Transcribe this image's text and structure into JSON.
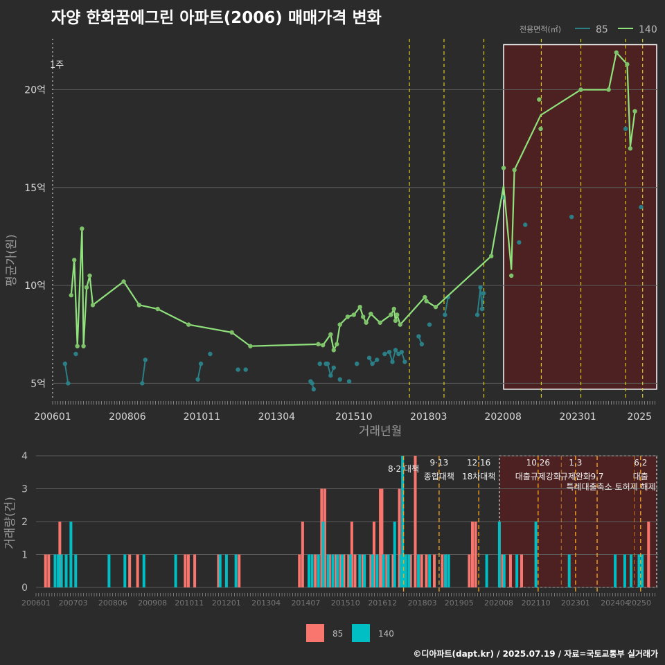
{
  "title": "자양 한화꿈에그린 아파트(2006) 매매가격 변화",
  "credit": "©디아파트(dapt.kr) / 2025.07.19 / 자료=국토교통부 실거래가",
  "colors": {
    "bg": "#2b2b2b",
    "grid": "#5a5a5a",
    "line140": "#90e27c",
    "dot140": "#7ec26a",
    "dot85": "#2b7f86",
    "bar85": "#f8766d",
    "bar140": "#00bfc4",
    "vline": "#d9cb1f",
    "vline_low": "#f0a020",
    "region": "#5a1f1f",
    "text": "#d8d8d8"
  },
  "chart_data": [
    {
      "type": "scatter+line",
      "title": "",
      "xlabel": "거래년월",
      "ylabel": "평균가(원)",
      "x_unit": "year-decimal",
      "xlim": [
        2006.0,
        2025.6
      ],
      "ylim": [
        4.2,
        22.6
      ],
      "x_ticks": [
        {
          "value": 2006.0,
          "label": "200601"
        },
        {
          "value": 2008.42,
          "label": "200806"
        },
        {
          "value": 2010.83,
          "label": "201011"
        },
        {
          "value": 2013.25,
          "label": "201304"
        },
        {
          "value": 2015.75,
          "label": "201510"
        },
        {
          "value": 2018.17,
          "label": "201803"
        },
        {
          "value": 2020.58,
          "label": "202008"
        },
        {
          "value": 2023.0,
          "label": "202301"
        },
        {
          "value": 2025.0,
          "label": "2025"
        }
      ],
      "y_ticks": [
        {
          "value": 5,
          "label": "5억"
        },
        {
          "value": 10,
          "label": "10억"
        },
        {
          "value": 15,
          "label": "15억"
        },
        {
          "value": 20,
          "label": "20억"
        }
      ],
      "legend": {
        "title": "전용면적(㎡)",
        "position": "top-right",
        "items": [
          "85",
          "140"
        ]
      },
      "annotation_text": "1주",
      "vlines": [
        2006.0,
        2017.55,
        2018.67,
        2019.96,
        2021.82,
        2023.1,
        2024.55,
        2025.1
      ],
      "highlight_range": {
        "x": [
          2020.6,
          2025.7
        ],
        "y": [
          4.7,
          22.3
        ]
      },
      "series": [
        {
          "name": "140",
          "points": [
            [
              2006.6,
              9.5
            ],
            [
              2006.7,
              11.3
            ],
            [
              2006.8,
              6.9
            ],
            [
              2006.95,
              12.9
            ],
            [
              2007.0,
              6.9
            ],
            [
              2007.1,
              9.9
            ],
            [
              2007.2,
              10.5
            ],
            [
              2007.3,
              9.0
            ],
            [
              2008.3,
              10.2
            ],
            [
              2008.8,
              9.0
            ],
            [
              2009.4,
              8.8
            ],
            [
              2010.4,
              8.0
            ],
            [
              2011.8,
              7.6
            ],
            [
              2012.4,
              6.9
            ],
            [
              2014.6,
              7.0
            ],
            [
              2014.75,
              6.95
            ],
            [
              2015.0,
              7.5
            ],
            [
              2015.1,
              6.7
            ],
            [
              2015.2,
              7.0
            ],
            [
              2015.3,
              8.0
            ],
            [
              2015.55,
              8.4
            ],
            [
              2015.75,
              8.5
            ],
            [
              2015.95,
              8.9
            ],
            [
              2016.05,
              8.4
            ],
            [
              2016.15,
              8.1
            ],
            [
              2016.3,
              8.55
            ],
            [
              2016.6,
              8.1
            ],
            [
              2016.95,
              8.5
            ],
            [
              2017.05,
              8.8
            ],
            [
              2017.1,
              8.2
            ],
            [
              2017.15,
              8.5
            ],
            [
              2017.25,
              8.0
            ],
            [
              2018.05,
              9.4
            ],
            [
              2018.1,
              9.2
            ],
            [
              2018.4,
              8.9
            ],
            [
              2020.2,
              11.5
            ],
            [
              2020.6,
              16.0
            ],
            [
              2020.85,
              10.5
            ],
            [
              2020.95,
              15.9
            ],
            [
              2021.75,
              19.5
            ],
            [
              2021.8,
              18.0
            ],
            [
              2023.1,
              20.0
            ],
            [
              2024.0,
              20.0
            ],
            [
              2024.25,
              21.9
            ],
            [
              2024.6,
              21.3
            ],
            [
              2024.7,
              17.0
            ],
            [
              2024.85,
              18.9
            ]
          ],
          "line": [
            [
              2020.2,
              11.5
            ],
            [
              2020.6,
              15.1
            ],
            [
              2020.85,
              10.8
            ],
            [
              2020.95,
              15.9
            ],
            [
              2021.8,
              18.7
            ],
            [
              2023.1,
              20.0
            ],
            [
              2024.0,
              20.0
            ],
            [
              2024.25,
              21.9
            ],
            [
              2024.6,
              21.3
            ],
            [
              2024.7,
              17.1
            ],
            [
              2024.85,
              18.9
            ]
          ]
        },
        {
          "name": "85",
          "points": [
            [
              2006.4,
              6.0
            ],
            [
              2006.5,
              5.0
            ],
            [
              2006.75,
              6.5
            ],
            [
              2008.9,
              5.0
            ],
            [
              2009.0,
              6.2
            ],
            [
              2010.7,
              5.2
            ],
            [
              2010.8,
              6.0
            ],
            [
              2011.1,
              6.5
            ],
            [
              2012.0,
              5.7
            ],
            [
              2012.25,
              5.7
            ],
            [
              2014.35,
              5.1
            ],
            [
              2014.4,
              5.0
            ],
            [
              2014.45,
              4.7
            ],
            [
              2014.65,
              6.0
            ],
            [
              2014.85,
              6.0
            ],
            [
              2014.9,
              6.0
            ],
            [
              2015.0,
              5.4
            ],
            [
              2015.1,
              5.8
            ],
            [
              2015.3,
              5.2
            ],
            [
              2015.6,
              5.1
            ],
            [
              2015.85,
              6.0
            ],
            [
              2016.25,
              6.3
            ],
            [
              2016.35,
              6.0
            ],
            [
              2016.5,
              6.2
            ],
            [
              2016.75,
              6.5
            ],
            [
              2016.9,
              6.6
            ],
            [
              2017.0,
              6.1
            ],
            [
              2017.1,
              6.7
            ],
            [
              2017.2,
              6.5
            ],
            [
              2017.3,
              6.6
            ],
            [
              2017.4,
              6.1
            ],
            [
              2017.85,
              7.4
            ],
            [
              2017.95,
              7.0
            ],
            [
              2018.2,
              8.0
            ],
            [
              2018.7,
              8.5
            ],
            [
              2018.8,
              9.4
            ],
            [
              2019.75,
              8.5
            ],
            [
              2019.85,
              9.9
            ],
            [
              2019.9,
              8.8
            ],
            [
              2019.95,
              9.6
            ],
            [
              2020.6,
              14.5
            ],
            [
              2021.1,
              12.2
            ],
            [
              2021.3,
              13.1
            ],
            [
              2022.8,
              13.5
            ],
            [
              2024.55,
              18.0
            ],
            [
              2025.05,
              14.0
            ]
          ]
        }
      ]
    },
    {
      "type": "bar",
      "title": "",
      "xlabel": "",
      "ylabel": "거래량(건)",
      "x_unit": "year-decimal",
      "xlim": [
        2006.0,
        2025.6
      ],
      "ylim": [
        0,
        4
      ],
      "x_ticks": [
        {
          "value": 2006.0,
          "label": "200601"
        },
        {
          "value": 2007.17,
          "label": "200703"
        },
        {
          "value": 2008.42,
          "label": "200806"
        },
        {
          "value": 2009.67,
          "label": "200908"
        },
        {
          "value": 2010.83,
          "label": "201011"
        },
        {
          "value": 2012.0,
          "label": "201201"
        },
        {
          "value": 2013.25,
          "label": "201304"
        },
        {
          "value": 2014.5,
          "label": "201407"
        },
        {
          "value": 2015.75,
          "label": "201510"
        },
        {
          "value": 2016.92,
          "label": "201612"
        },
        {
          "value": 2018.17,
          "label": "201803"
        },
        {
          "value": 2019.33,
          "label": "201905"
        },
        {
          "value": 2020.58,
          "label": "202008"
        },
        {
          "value": 2021.75,
          "label": "202110"
        },
        {
          "value": 2023.0,
          "label": "202301"
        },
        {
          "value": 2024.25,
          "label": "202404"
        },
        {
          "value": 2025.0,
          "label": "20250"
        }
      ],
      "y_ticks": [
        0,
        1,
        2,
        3,
        4
      ],
      "legend": {
        "position": "bottom",
        "items": [
          "85",
          "140"
        ]
      },
      "policy_lines": [
        {
          "x": 2017.58,
          "label1": "",
          "label2": "8·2 대책",
          "offset": 1
        },
        {
          "x": 2018.7,
          "label1": "9·13",
          "label2": "종합대책",
          "offset": 0
        },
        {
          "x": 2019.95,
          "label1": "12·16",
          "label2": "18차대책",
          "offset": 0
        },
        {
          "x": 2021.82,
          "label1": "10.26",
          "label2": "대출규제강화",
          "offset": 0
        },
        {
          "x": 2023.0,
          "label1": "1.3",
          "label2": "규제완화",
          "offset": 0
        },
        {
          "x": 2023.68,
          "label1": "",
          "label2": "9.7",
          "offset": 0,
          "extra": "특례대출축소 토허제 해제"
        },
        {
          "x": 2025.05,
          "label1": "6.2",
          "label2": "대출",
          "offset": 0
        }
      ],
      "extra_dashed": [
        2022.55,
        2024.85
      ],
      "highlight_range": [
        2020.6,
        2025.65
      ],
      "series": [
        {
          "name": "85",
          "bars": [
            [
              2006.3,
              1
            ],
            [
              2006.4,
              1
            ],
            [
              2006.75,
              2
            ],
            [
              2008.95,
              1
            ],
            [
              2009.2,
              1
            ],
            [
              2010.7,
              1
            ],
            [
              2010.8,
              1
            ],
            [
              2011.0,
              1
            ],
            [
              2011.75,
              1
            ],
            [
              2012.4,
              1
            ],
            [
              2014.3,
              1
            ],
            [
              2014.4,
              2
            ],
            [
              2014.8,
              1
            ],
            [
              2015.0,
              3
            ],
            [
              2015.1,
              3
            ],
            [
              2015.25,
              1
            ],
            [
              2015.45,
              1
            ],
            [
              2015.6,
              1
            ],
            [
              2015.7,
              1
            ],
            [
              2015.85,
              1
            ],
            [
              2015.95,
              2
            ],
            [
              2016.05,
              1
            ],
            [
              2016.3,
              1
            ],
            [
              2016.55,
              1
            ],
            [
              2016.65,
              2
            ],
            [
              2016.85,
              3
            ],
            [
              2016.9,
              3
            ],
            [
              2017.05,
              1
            ],
            [
              2017.25,
              1
            ],
            [
              2017.45,
              3
            ],
            [
              2017.8,
              1
            ],
            [
              2017.95,
              4
            ],
            [
              2018.15,
              1
            ],
            [
              2018.3,
              1
            ],
            [
              2018.55,
              1
            ],
            [
              2018.8,
              1
            ],
            [
              2019.65,
              1
            ],
            [
              2019.75,
              2
            ],
            [
              2019.85,
              2
            ],
            [
              2020.7,
              1
            ],
            [
              2020.95,
              1
            ],
            [
              2021.3,
              1
            ],
            [
              2025.3,
              2
            ]
          ]
        },
        {
          "name": "140",
          "bars": [
            [
              2006.6,
              1
            ],
            [
              2006.7,
              1
            ],
            [
              2006.8,
              1
            ],
            [
              2006.95,
              1
            ],
            [
              2007.1,
              2
            ],
            [
              2007.25,
              1
            ],
            [
              2008.3,
              1
            ],
            [
              2008.8,
              1
            ],
            [
              2009.4,
              1
            ],
            [
              2010.4,
              1
            ],
            [
              2011.8,
              1
            ],
            [
              2012.0,
              1
            ],
            [
              2012.3,
              1
            ],
            [
              2014.6,
              1
            ],
            [
              2014.7,
              1
            ],
            [
              2014.9,
              1
            ],
            [
              2015.05,
              2
            ],
            [
              2015.2,
              1
            ],
            [
              2015.35,
              1
            ],
            [
              2015.5,
              1
            ],
            [
              2015.65,
              1
            ],
            [
              2015.9,
              1
            ],
            [
              2016.2,
              1
            ],
            [
              2016.35,
              1
            ],
            [
              2016.6,
              1
            ],
            [
              2016.75,
              1
            ],
            [
              2016.95,
              1
            ],
            [
              2017.1,
              1
            ],
            [
              2017.3,
              2
            ],
            [
              2017.5,
              1
            ],
            [
              2017.55,
              4
            ],
            [
              2017.6,
              1
            ],
            [
              2017.65,
              1
            ],
            [
              2017.75,
              1
            ],
            [
              2018.05,
              1
            ],
            [
              2018.4,
              1
            ],
            [
              2018.9,
              1
            ],
            [
              2019.0,
              1
            ],
            [
              2020.2,
              1
            ],
            [
              2020.6,
              2
            ],
            [
              2020.75,
              1
            ],
            [
              2021.15,
              1
            ],
            [
              2021.75,
              2
            ],
            [
              2022.8,
              1
            ],
            [
              2024.25,
              1
            ],
            [
              2024.55,
              1
            ],
            [
              2024.75,
              1
            ],
            [
              2025.0,
              1
            ],
            [
              2025.1,
              1
            ]
          ]
        }
      ]
    }
  ]
}
